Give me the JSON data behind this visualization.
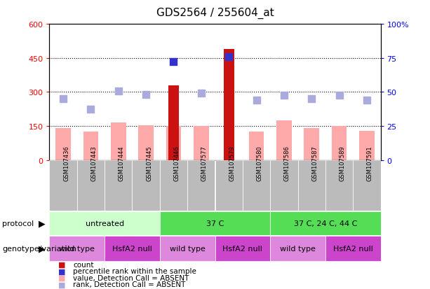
{
  "title": "GDS2564 / 255604_at",
  "samples": [
    "GSM107436",
    "GSM107443",
    "GSM107444",
    "GSM107445",
    "GSM107446",
    "GSM107577",
    "GSM107579",
    "GSM107580",
    "GSM107586",
    "GSM107587",
    "GSM107589",
    "GSM107591"
  ],
  "count_values": [
    null,
    null,
    null,
    null,
    330,
    null,
    490,
    null,
    null,
    null,
    null,
    null
  ],
  "percentile_values": [
    null,
    null,
    null,
    null,
    435,
    null,
    455,
    null,
    null,
    null,
    null,
    null
  ],
  "absent_value_values": [
    140,
    125,
    165,
    155,
    150,
    150,
    null,
    125,
    175,
    140,
    150,
    130
  ],
  "absent_rank_values": [
    270,
    225,
    305,
    290,
    null,
    295,
    null,
    265,
    285,
    270,
    285,
    265
  ],
  "ylim_left": [
    0,
    600
  ],
  "ylim_right": [
    0,
    100
  ],
  "yticks_left": [
    0,
    150,
    300,
    450,
    600
  ],
  "yticks_right": [
    0,
    25,
    50,
    75,
    100
  ],
  "ytick_labels_left": [
    "0",
    "150",
    "300",
    "450",
    "600"
  ],
  "ytick_labels_right": [
    "0",
    "25",
    "50",
    "75",
    "100%"
  ],
  "color_count": "#cc1111",
  "color_percentile": "#3333cc",
  "color_absent_value": "#ffaaaa",
  "color_absent_rank": "#aaaadd",
  "protocol_groups": [
    {
      "label": "untreated",
      "start": 0,
      "end": 4,
      "color": "#ccffcc"
    },
    {
      "label": "37 C",
      "start": 4,
      "end": 8,
      "color": "#55dd55"
    },
    {
      "label": "37 C, 24 C, 44 C",
      "start": 8,
      "end": 12,
      "color": "#55dd55"
    }
  ],
  "genotype_groups": [
    {
      "label": "wild type",
      "start": 0,
      "end": 2,
      "color": "#dd88dd"
    },
    {
      "label": "HsfA2 null",
      "start": 2,
      "end": 4,
      "color": "#cc44cc"
    },
    {
      "label": "wild type",
      "start": 4,
      "end": 6,
      "color": "#dd88dd"
    },
    {
      "label": "HsfA2 null",
      "start": 6,
      "end": 8,
      "color": "#cc44cc"
    },
    {
      "label": "wild type",
      "start": 8,
      "end": 10,
      "color": "#dd88dd"
    },
    {
      "label": "HsfA2 null",
      "start": 10,
      "end": 12,
      "color": "#cc44cc"
    }
  ],
  "legend_items": [
    {
      "label": "count",
      "color": "#cc1111"
    },
    {
      "label": "percentile rank within the sample",
      "color": "#3333cc"
    },
    {
      "label": "value, Detection Call = ABSENT",
      "color": "#ffaaaa"
    },
    {
      "label": "rank, Detection Call = ABSENT",
      "color": "#aaaadd"
    }
  ],
  "bar_width": 0.55,
  "marker_size": 55,
  "protocol_label": "protocol",
  "genotype_label": "genotype/variation",
  "sample_bg_color": "#bbbbbb",
  "title_fontsize": 11,
  "tick_fontsize": 8,
  "label_fontsize": 8,
  "legend_fontsize": 7.5,
  "sample_fontsize": 6
}
